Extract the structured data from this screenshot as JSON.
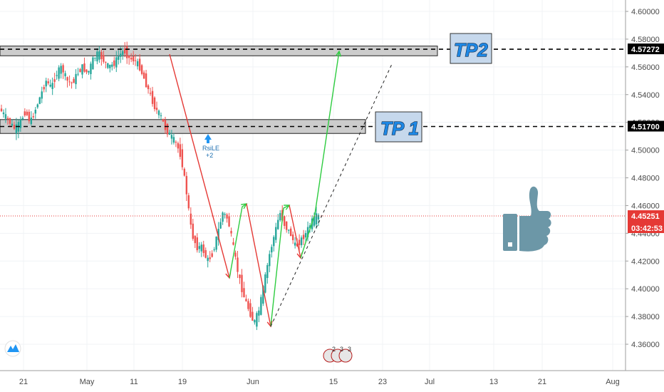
{
  "chart_data": {
    "type": "candlestick",
    "ylim": [
      4.35,
      4.605
    ],
    "y_ticks": [
      "4.36000",
      "4.38000",
      "4.40000",
      "4.42000",
      "4.44000",
      "4.46000",
      "4.48000",
      "4.50000",
      "4.52000",
      "4.54000",
      "4.56000",
      "4.58000",
      "4.60000"
    ],
    "x_ticks": [
      "21",
      "May",
      "11",
      "19",
      "Jun",
      "15",
      "23",
      "Jul",
      "13",
      "21",
      "Aug"
    ],
    "price_labels": {
      "tp2": "4.57272",
      "tp1": "4.51700",
      "last": "4.45251",
      "countdown": "03:42:53"
    },
    "levels": {
      "tp2": 4.57272,
      "tp1": 4.517,
      "last": 4.45251
    },
    "annotations": {
      "tp1_label": "TP 1",
      "tp2_label": "TP2",
      "signal_name": "RsiLE",
      "signal_value": "+2",
      "event_badges": [
        "2",
        "3",
        "3"
      ]
    },
    "price_path": [
      4.53,
      4.525,
      4.52,
      4.515,
      4.52,
      4.528,
      4.52,
      4.53,
      4.54,
      4.55,
      4.545,
      4.555,
      4.56,
      4.55,
      4.548,
      4.555,
      4.56,
      4.555,
      4.565,
      4.57,
      4.565,
      4.56,
      4.562,
      4.568,
      4.572,
      4.566,
      4.565,
      4.56,
      4.55,
      4.54,
      4.53,
      4.525,
      4.515,
      4.51,
      4.505,
      4.495,
      4.47,
      4.44,
      4.43,
      4.43,
      4.42,
      4.425,
      4.44,
      4.455,
      4.45,
      4.43,
      4.41,
      4.395,
      4.385,
      4.375,
      4.385,
      4.405,
      4.425,
      4.44,
      4.455,
      4.445,
      4.44,
      4.43,
      4.435,
      4.44,
      4.448,
      4.452
    ],
    "colors": {
      "up": "#26a69a",
      "down": "#ef5350",
      "bullish_arrow": "#2ecc40",
      "bearish_arrow": "#e53935",
      "price_line": "#e53935",
      "zone_fill": "#cccccc",
      "thumb": "#6c97a7",
      "tp_box": "#c6d8ec"
    },
    "icons": {
      "logo": "tradingview-logo-icon",
      "thumb": "thumbs-up-icon"
    }
  }
}
